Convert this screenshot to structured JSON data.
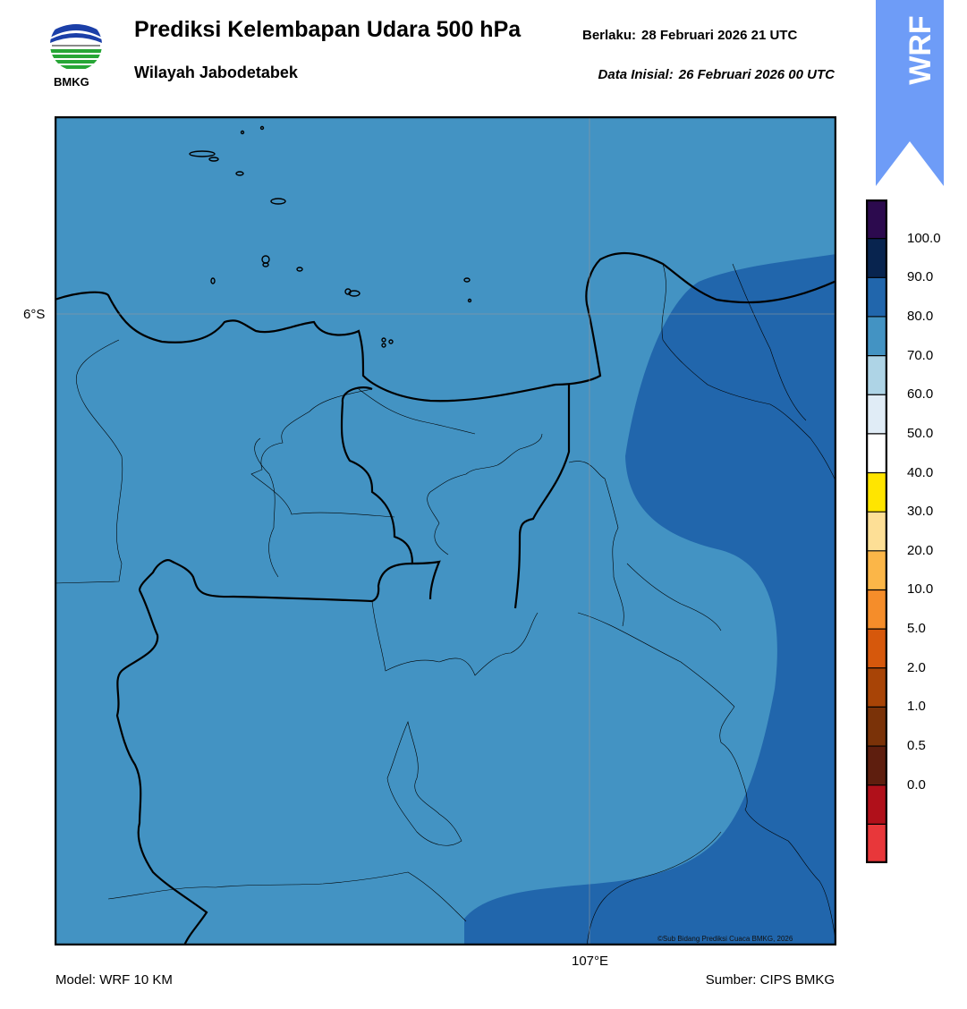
{
  "header": {
    "title": "Prediksi Kelembapan Udara 500 hPa",
    "subtitle": "Wilayah Jabodetabek",
    "valid_label": "Berlaku:",
    "valid_time": "28 Februari 2026 21 UTC",
    "init_label": "Data Inisial:",
    "init_time": "26 Februari 2026 00 UTC"
  },
  "logo": {
    "text": "BMKG",
    "icon": "bmkg-logo"
  },
  "badge": {
    "text": "WRF",
    "color": "#6e9cf7"
  },
  "map": {
    "lat_label": "6°S",
    "lon_label": "107°E",
    "copyright": "©Sub Bidang Prediksi Cuaca BMKG, 2026",
    "field_color_70_80": "#4393c3",
    "field_color_80_90": "#2166ac"
  },
  "colorbar": {
    "ticks": [
      "100.0",
      "90.0",
      "80.0",
      "70.0",
      "60.0",
      "50.0",
      "40.0",
      "30.0",
      "20.0",
      "10.0",
      "5.0",
      "2.0",
      "1.0",
      "0.5",
      "0.0"
    ],
    "colors": [
      "#e8373a",
      "#b0101a",
      "#5e1e0e",
      "#7a3208",
      "#a84406",
      "#d6580c",
      "#f58d2a",
      "#fbb648",
      "#fddf96",
      "#ffe500",
      "#ffffff",
      "#e0ecf6",
      "#aed4e6",
      "#4393c3",
      "#2166ac",
      "#08244f",
      "#2c0a4e"
    ]
  },
  "footer": {
    "model": "Model: WRF 10 KM",
    "source": "Sumber: CIPS BMKG"
  }
}
